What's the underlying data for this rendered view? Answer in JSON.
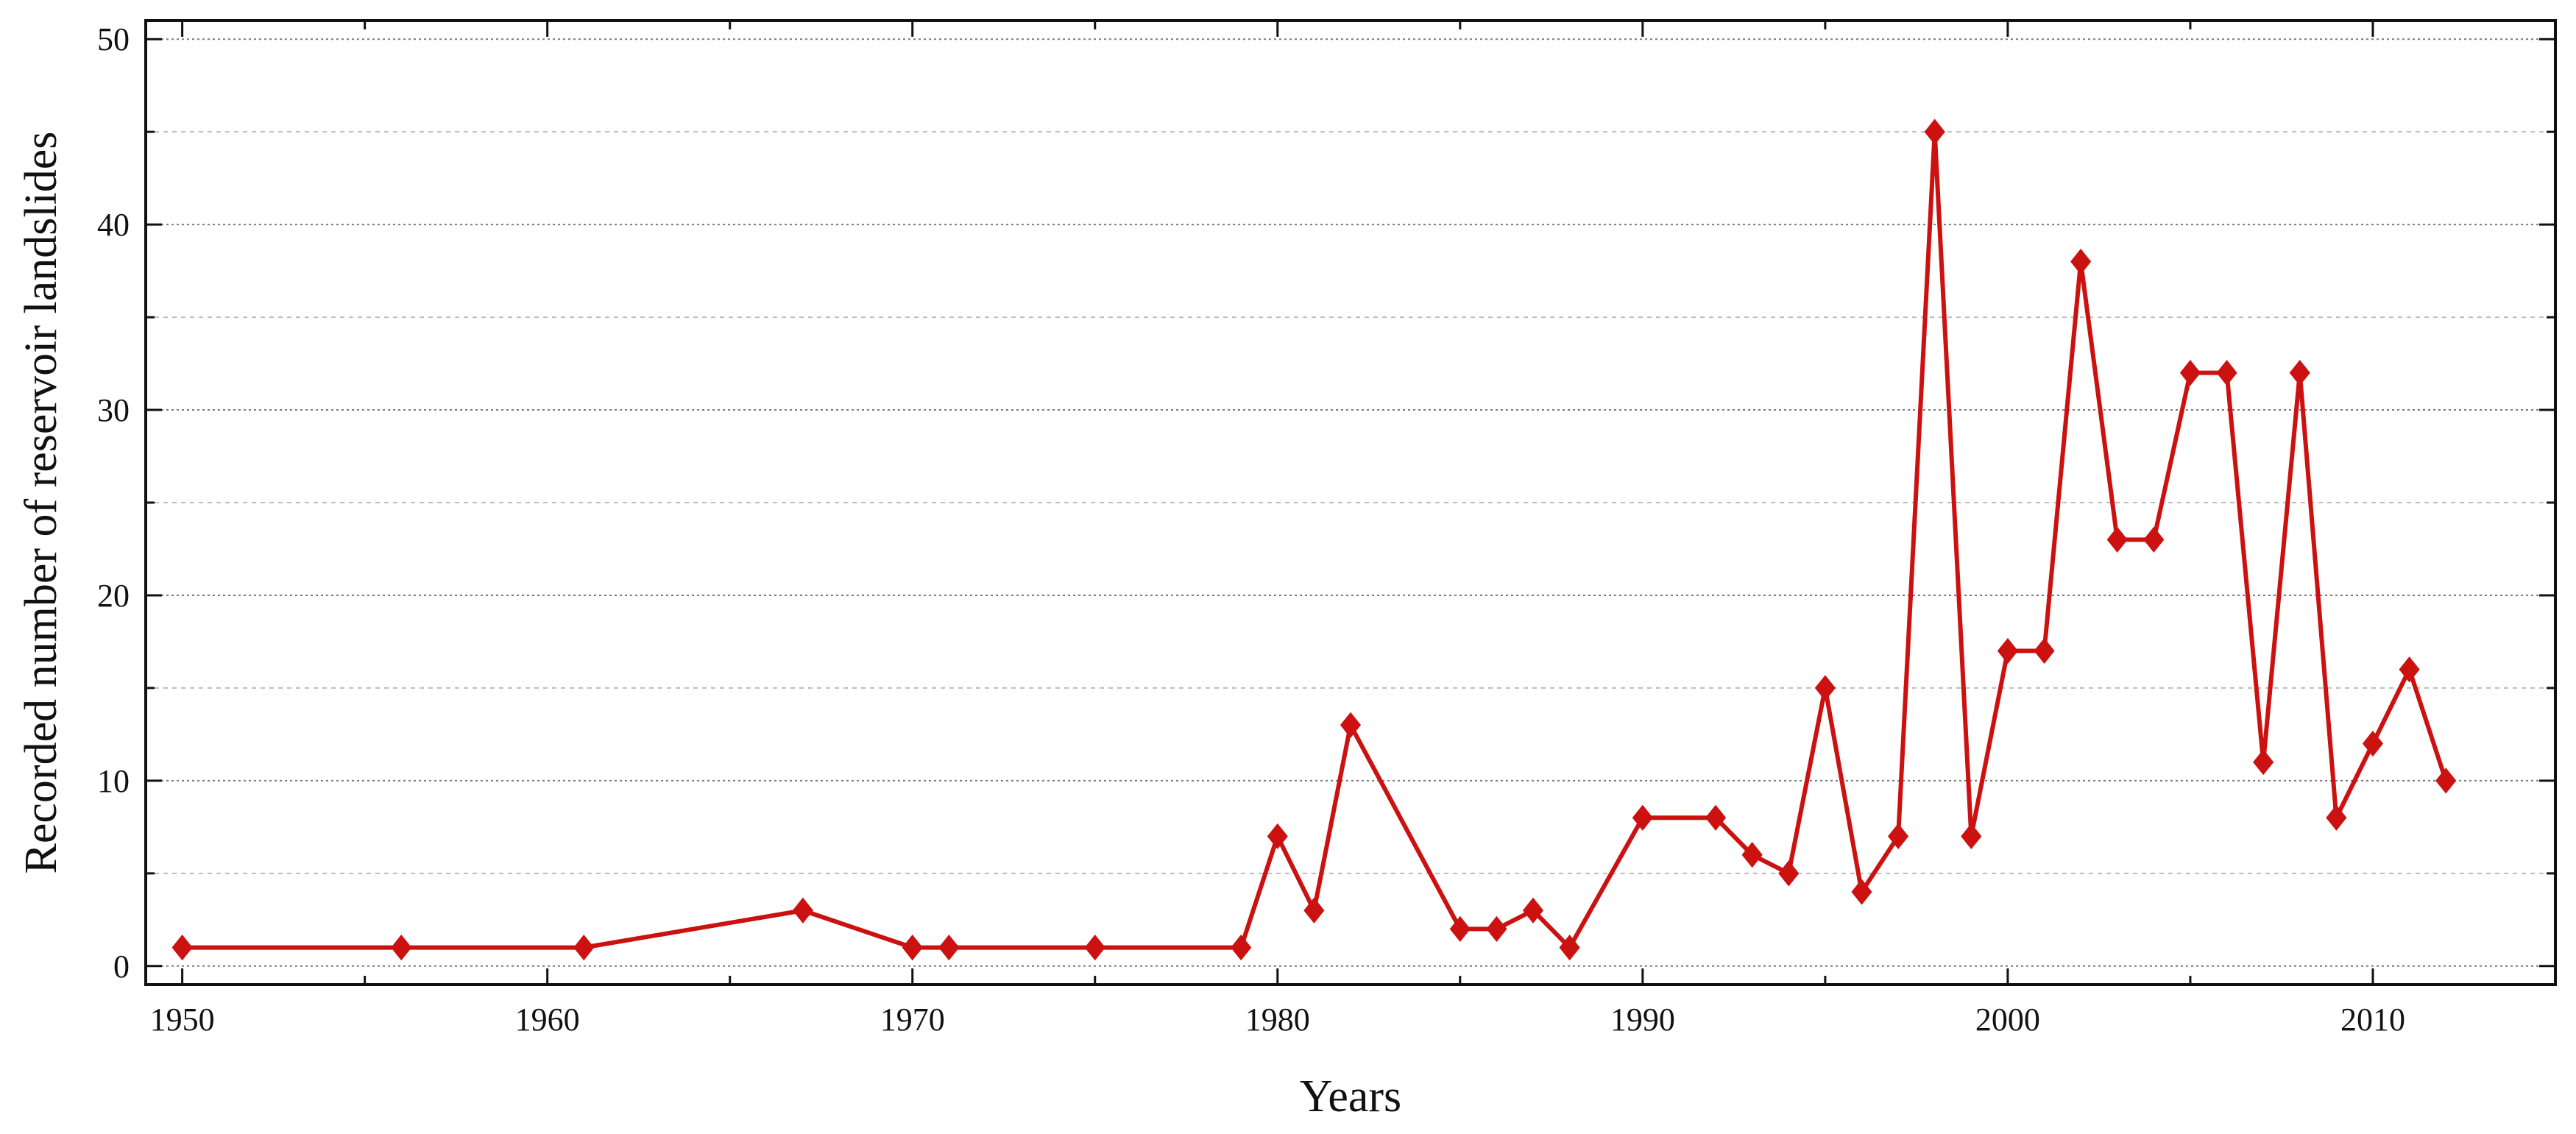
{
  "chart_data": {
    "type": "line",
    "title": "",
    "xlabel": "Years",
    "ylabel": "Recorded number of reservoir landslides",
    "xlim": [
      1949,
      2015
    ],
    "ylim": [
      -1,
      51
    ],
    "x_ticks": [
      1950,
      1960,
      1970,
      1980,
      1990,
      2000,
      2010
    ],
    "x_tick_labels": [
      "1950",
      "1960",
      "1970",
      "1980",
      "1990",
      "2000",
      "2010"
    ],
    "x_minor_step": 5,
    "y_ticks": [
      0,
      10,
      20,
      30,
      40,
      50
    ],
    "y_tick_labels": [
      "0",
      "10",
      "20",
      "30",
      "40",
      "50"
    ],
    "y_minor_step": 5,
    "grid": true,
    "legend": "none",
    "series": [
      {
        "color": "#cc1111",
        "marker": "diamond",
        "x": [
          1950,
          1956,
          1961,
          1967,
          1970,
          1971,
          1975,
          1979,
          1980,
          1981,
          1982,
          1985,
          1986,
          1987,
          1988,
          1990,
          1992,
          1993,
          1994,
          1995,
          1996,
          1997,
          1998,
          1999,
          2000,
          2001,
          2002,
          2003,
          2004,
          2005,
          2006,
          2007,
          2008,
          2009,
          2010,
          2011,
          2012
        ],
        "y": [
          1,
          1,
          1,
          3,
          1,
          1,
          1,
          1,
          7,
          3,
          13,
          2,
          2,
          3,
          1,
          8,
          8,
          6,
          5,
          15,
          4,
          7,
          45,
          7,
          17,
          17,
          38,
          23,
          23,
          32,
          32,
          11,
          32,
          8,
          12,
          16,
          10
        ]
      }
    ]
  }
}
